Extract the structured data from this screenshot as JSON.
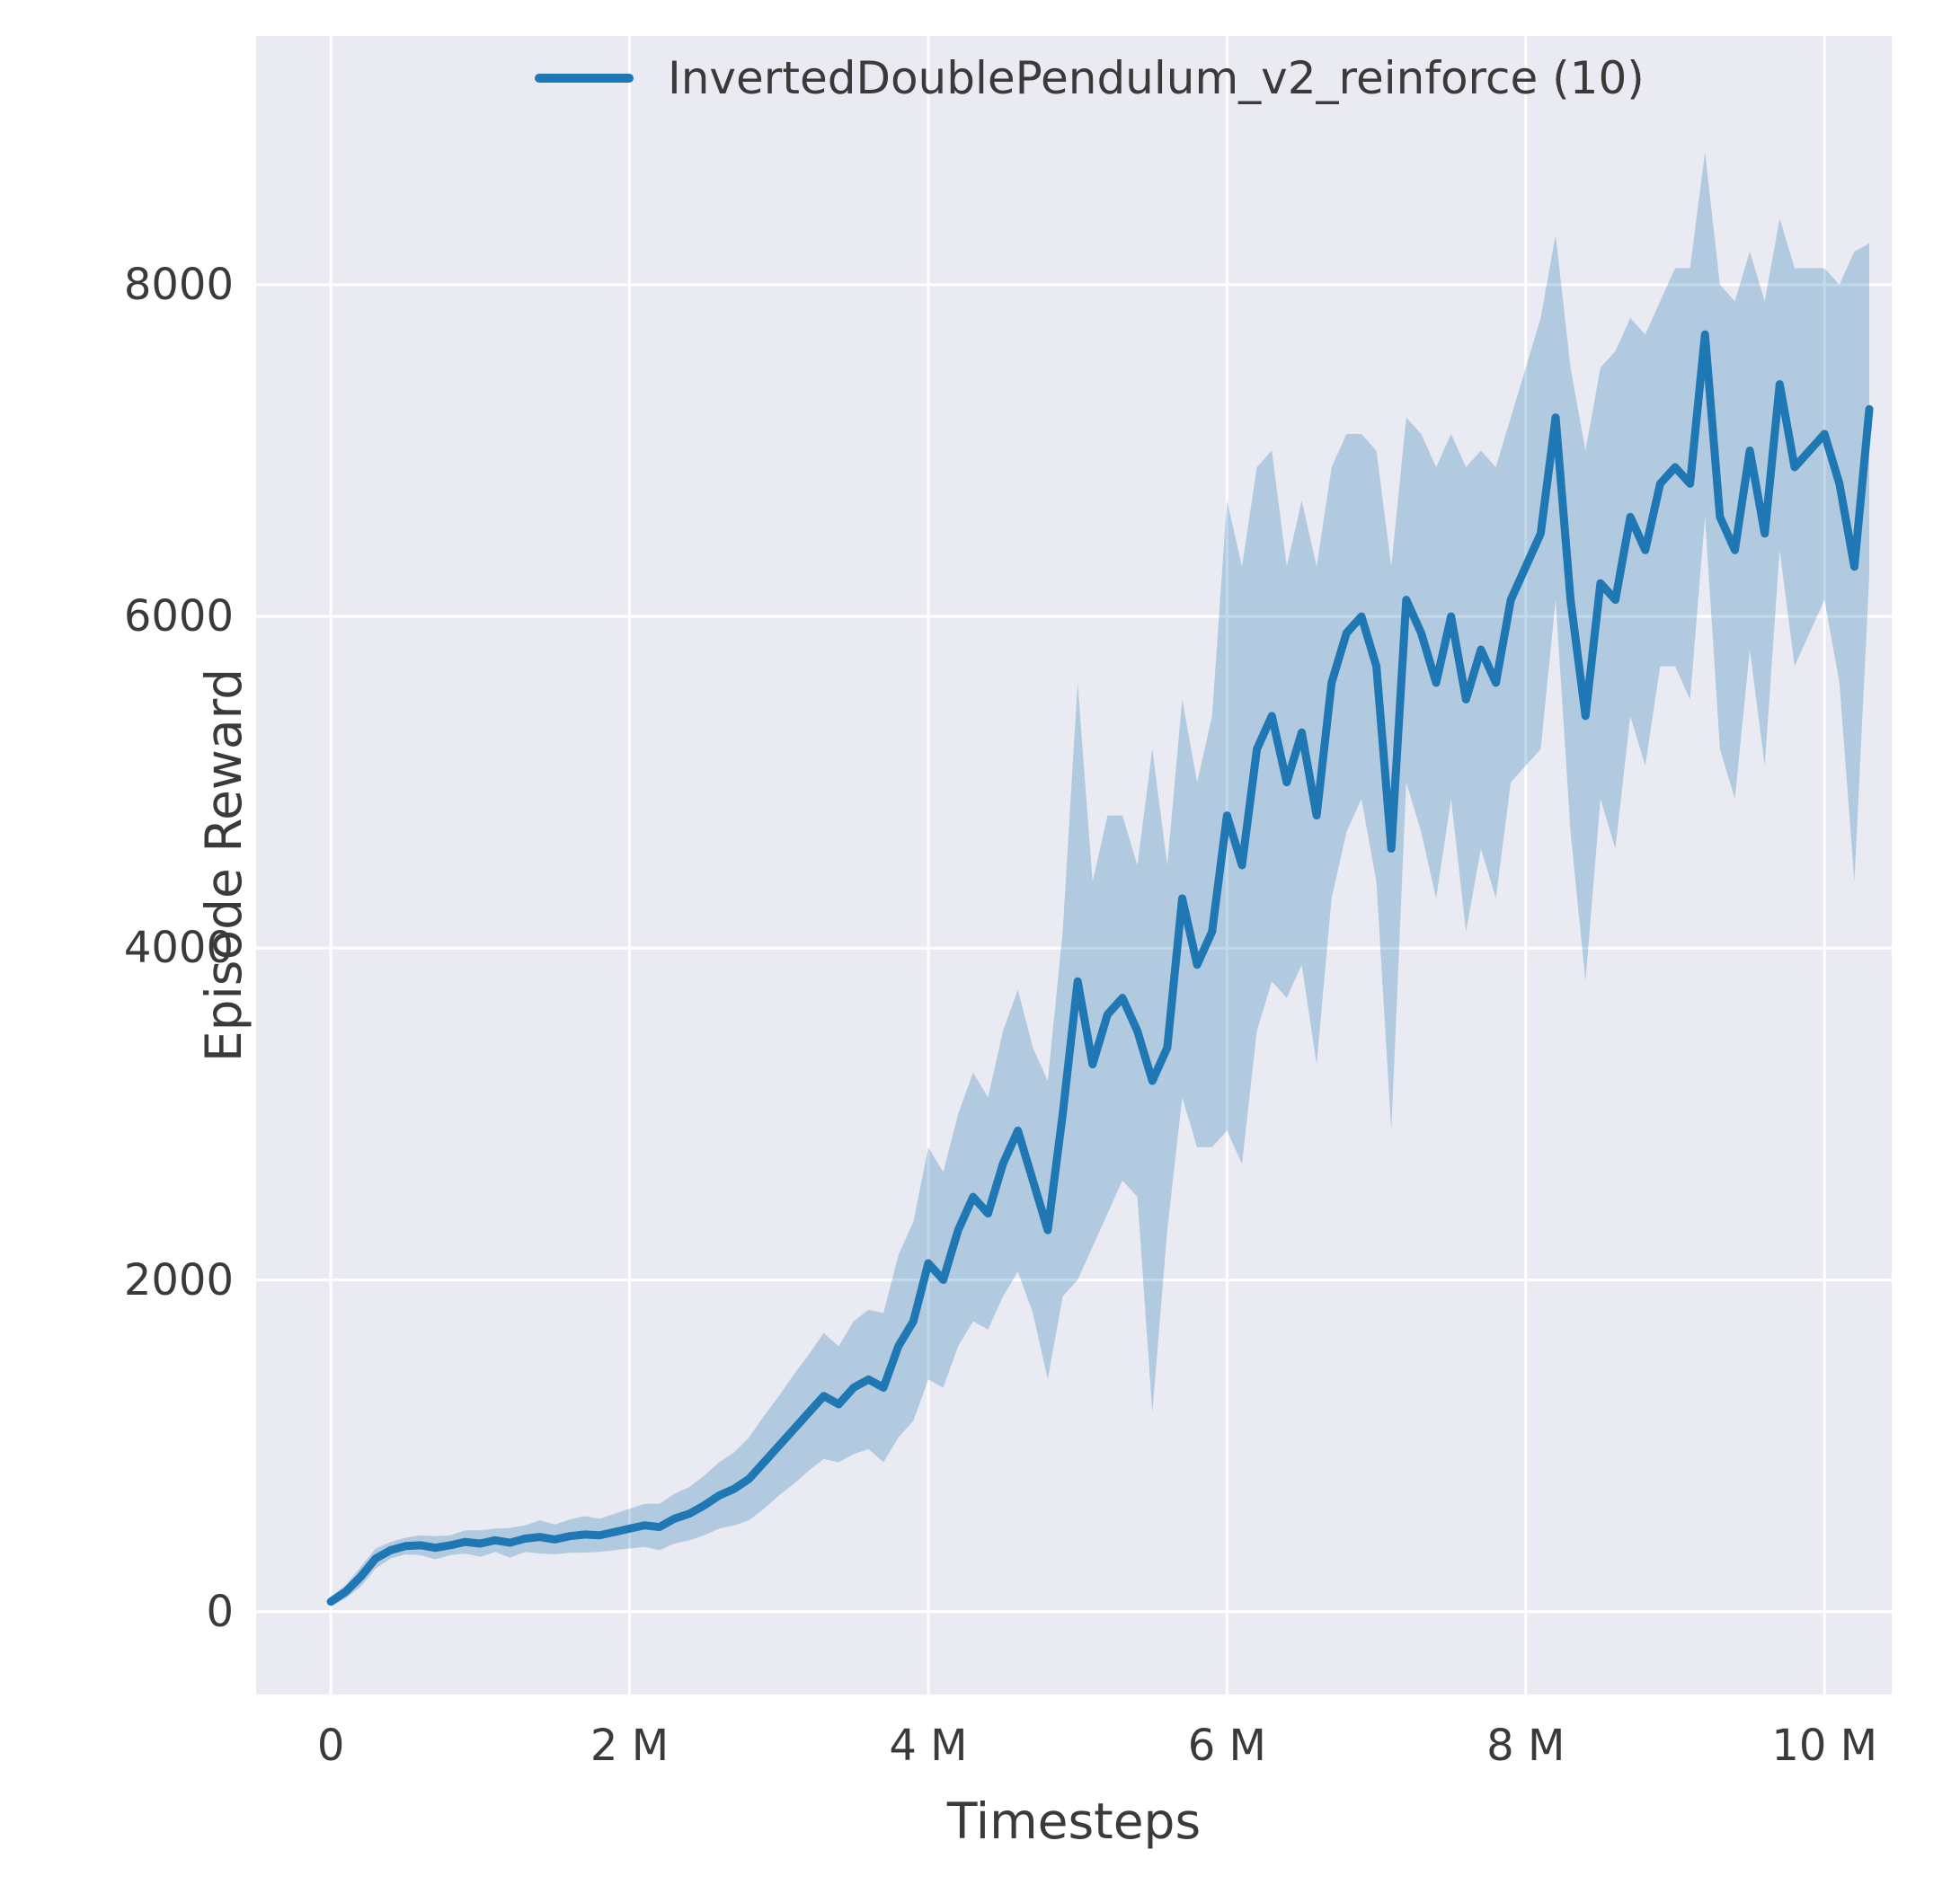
{
  "figure": {
    "xlabel": "Timesteps",
    "ylabel": "Episode Reward",
    "legend_label": "InvertedDoublePendulum_v2_reinforce (10)"
  },
  "chart_data": {
    "type": "line",
    "title": "",
    "xlabel": "Timesteps",
    "ylabel": "Episode Reward",
    "legend": [
      "InvertedDoublePendulum_v2_reinforce (10)"
    ],
    "legend_position": "upper center inside plot",
    "grid": true,
    "x_unit": "timesteps (millions)",
    "xlim": [
      -0.5,
      10.45
    ],
    "ylim": [
      -500,
      9500
    ],
    "x_ticks": [
      {
        "value": 0,
        "label": "0"
      },
      {
        "value": 2,
        "label": "2 M"
      },
      {
        "value": 4,
        "label": "4 M"
      },
      {
        "value": 6,
        "label": "6 M"
      },
      {
        "value": 8,
        "label": "8 M"
      },
      {
        "value": 10,
        "label": "10 M"
      }
    ],
    "y_ticks": [
      {
        "value": 0,
        "label": "0"
      },
      {
        "value": 2000,
        "label": "2000"
      },
      {
        "value": 4000,
        "label": "4000"
      },
      {
        "value": 6000,
        "label": "6000"
      },
      {
        "value": 8000,
        "label": "8000"
      }
    ],
    "colors": {
      "line": "#1f77b4",
      "band": "rgba(31,119,180,0.28)",
      "plot_bg": "#eaeaf2",
      "grid": "#ffffff",
      "text": "#3a3a3a"
    },
    "series": [
      {
        "name": "InvertedDoublePendulum_v2_reinforce (10)",
        "x": [
          0,
          0.1,
          0.2,
          0.3,
          0.4,
          0.5,
          0.6,
          0.7,
          0.8,
          0.9,
          1.0,
          1.1,
          1.2,
          1.3,
          1.4,
          1.5,
          1.6,
          1.7,
          1.8,
          1.9,
          2.0,
          2.1,
          2.2,
          2.3,
          2.4,
          2.5,
          2.6,
          2.7,
          2.8,
          2.9,
          3.0,
          3.1,
          3.2,
          3.3,
          3.4,
          3.5,
          3.6,
          3.7,
          3.8,
          3.9,
          4.0,
          4.1,
          4.2,
          4.3,
          4.4,
          4.5,
          4.6,
          4.7,
          4.8,
          4.9,
          5.0,
          5.1,
          5.2,
          5.3,
          5.4,
          5.5,
          5.6,
          5.7,
          5.8,
          5.9,
          6.0,
          6.1,
          6.2,
          6.3,
          6.4,
          6.5,
          6.6,
          6.7,
          6.8,
          6.9,
          7.0,
          7.1,
          7.2,
          7.3,
          7.4,
          7.5,
          7.6,
          7.7,
          7.8,
          7.9,
          8.0,
          8.1,
          8.2,
          8.3,
          8.4,
          8.5,
          8.6,
          8.7,
          8.8,
          8.9,
          9.0,
          9.1,
          9.2,
          9.3,
          9.4,
          9.5,
          9.6,
          9.7,
          9.8,
          9.9,
          10.0,
          10.1,
          10.2,
          10.3
        ],
        "mean": [
          60,
          120,
          210,
          320,
          370,
          395,
          400,
          385,
          400,
          420,
          410,
          430,
          415,
          440,
          450,
          435,
          455,
          465,
          460,
          480,
          500,
          520,
          510,
          560,
          590,
          640,
          700,
          740,
          800,
          900,
          1000,
          1100,
          1200,
          1300,
          1250,
          1350,
          1400,
          1350,
          1600,
          1750,
          2100,
          2000,
          2300,
          2500,
          2400,
          2700,
          2900,
          2600,
          2300,
          3000,
          3800,
          3300,
          3600,
          3700,
          3500,
          3200,
          3400,
          4300,
          3900,
          4100,
          4800,
          4500,
          5200,
          5400,
          5000,
          5300,
          4800,
          5600,
          5900,
          6000,
          5700,
          4600,
          6100,
          5900,
          5600,
          6000,
          5500,
          5800,
          5600,
          6100,
          6300,
          6500,
          7200,
          6100,
          5400,
          6200,
          6100,
          6600,
          6400,
          6800,
          6900,
          6800,
          7700,
          6600,
          6400,
          7000,
          6500,
          7400,
          6900,
          7000,
          7100,
          6800,
          6300,
          7250
        ],
        "spread": [
          30,
          40,
          60,
          60,
          50,
          50,
          60,
          70,
          60,
          70,
          80,
          70,
          90,
          80,
          100,
          90,
          100,
          110,
          100,
          110,
          120,
          130,
          140,
          150,
          160,
          180,
          200,
          220,
          250,
          280,
          300,
          330,
          350,
          380,
          350,
          400,
          420,
          450,
          550,
          600,
          700,
          650,
          700,
          750,
          700,
          800,
          850,
          800,
          900,
          1100,
          1800,
          1100,
          1200,
          1100,
          1000,
          2000,
          1100,
          1200,
          1100,
          1300,
          1900,
          1800,
          1700,
          1600,
          1300,
          1400,
          1500,
          1300,
          1200,
          1100,
          1300,
          1700,
          1100,
          1200,
          1300,
          1100,
          1400,
          1200,
          1300,
          1100,
          1200,
          1300,
          1100,
          1400,
          1600,
          1300,
          1500,
          1200,
          1300,
          1100,
          1200,
          1300,
          1100,
          1400,
          1500,
          1200,
          1400,
          1000,
          1200,
          1100,
          1000,
          1200,
          1900,
          1000
        ]
      }
    ]
  }
}
